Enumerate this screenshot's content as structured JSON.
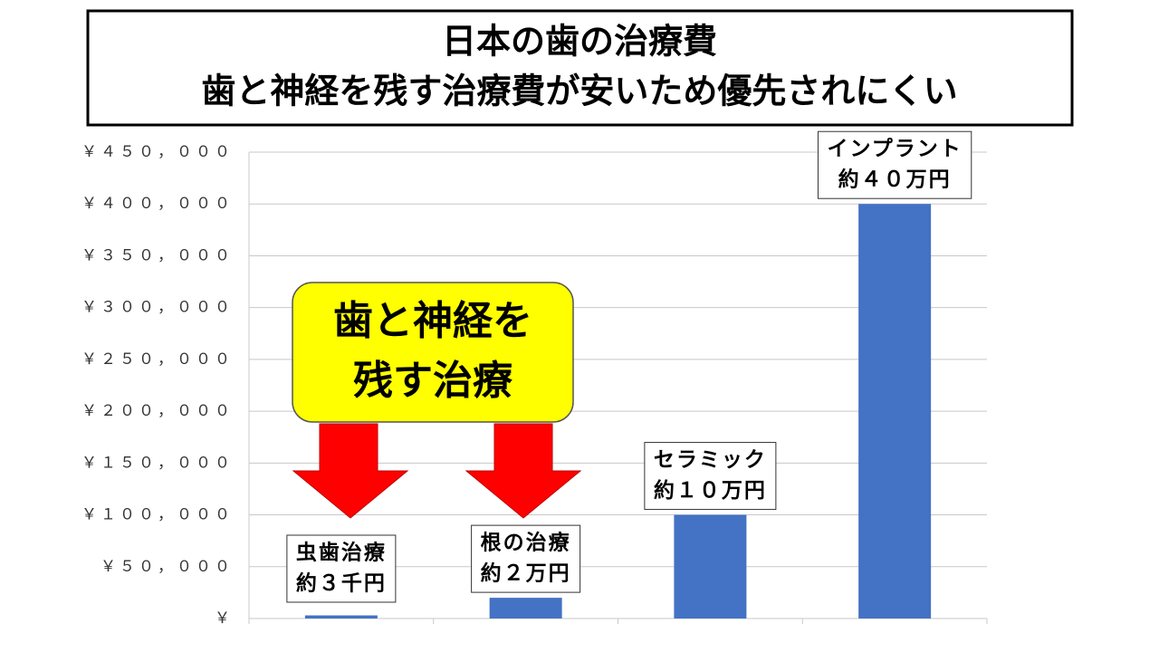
{
  "chart_data": {
    "type": "bar",
    "title": [
      "日本の歯の治療費",
      "歯と神経を残す治療費が安いため優先されにくい"
    ],
    "callout": [
      "歯と神経を",
      "残す治療"
    ],
    "categories": [
      "虫歯治療",
      "根の治療",
      "セラミック",
      "インプラント"
    ],
    "values": [
      3000,
      20000,
      100000,
      400000
    ],
    "value_labels": [
      "約３千円",
      "約２万円",
      "約１０万円",
      "約４０万円"
    ],
    "color": "#4472c4",
    "ylim": [
      0,
      450000
    ],
    "yticks": [
      {
        "value": 0,
        "label": "￥"
      },
      {
        "value": 50000,
        "label": "￥５０，０００"
      },
      {
        "value": 100000,
        "label": "￥１００，０００"
      },
      {
        "value": 150000,
        "label": "￥１５０，０００"
      },
      {
        "value": 200000,
        "label": "￥２００，０００"
      },
      {
        "value": 250000,
        "label": "￥２５０，０００"
      },
      {
        "value": 300000,
        "label": "￥３００，０００"
      },
      {
        "value": 350000,
        "label": "￥３５０，０００"
      },
      {
        "value": 400000,
        "label": "￥４００，０００"
      },
      {
        "value": 450000,
        "label": "￥４５０，０００"
      }
    ],
    "grid": true
  }
}
